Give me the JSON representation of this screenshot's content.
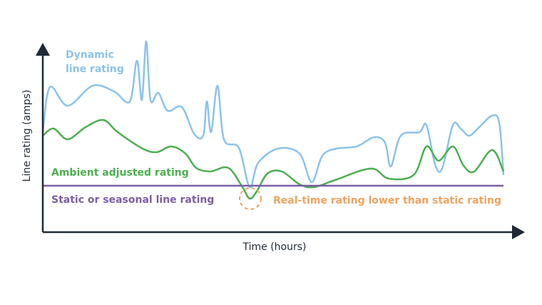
{
  "axes": {
    "x_label": "Time (hours)",
    "y_label": "Line rating (amps)"
  },
  "labels": {
    "dynamic": [
      "Dynamic",
      "line rating"
    ],
    "ambient": "Ambient adjusted rating",
    "static": "Static or seasonal line rating",
    "realtime": "Real-time rating lower than static rating"
  }
}
